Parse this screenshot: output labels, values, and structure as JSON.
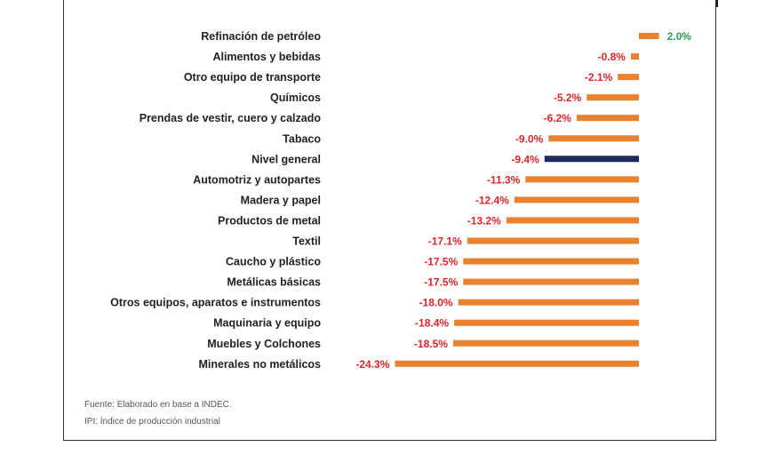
{
  "chart_data": {
    "type": "bar",
    "orientation": "horizontal",
    "categories": [
      "Refinación de petróleo",
      "Alimentos y bebidas",
      "Otro equipo de transporte",
      "Químicos",
      "Prendas de vestir, cuero y calzado",
      "Tabaco",
      "Nivel general",
      "Automotriz y autopartes",
      "Madera y papel",
      "Productos de metal",
      "Textil",
      "Caucho y plástico",
      "Metálicas básicas",
      "Otros equipos, aparatos e instrumentos",
      "Maquinaria y equipo",
      "Muebles y Colchones",
      "Minerales no metálicos"
    ],
    "values": [
      2.0,
      -0.8,
      -2.1,
      -5.2,
      -6.2,
      -9.0,
      -9.4,
      -11.3,
      -12.4,
      -13.2,
      -17.1,
      -17.5,
      -17.5,
      -18.0,
      -18.4,
      -18.5,
      -24.3
    ],
    "value_labels": [
      "2.0%",
      "-0.8%",
      "-2.1%",
      "-5.2%",
      "-6.2%",
      "-9.0%",
      "-9.4%",
      "-11.3%",
      "-12.4%",
      "-13.2%",
      "-17.1%",
      "-17.5%",
      "-17.5%",
      "-18.0%",
      "-18.4%",
      "-18.5%",
      "-24.3%"
    ],
    "highlight_category": "Nivel general",
    "xlim": [
      -24.3,
      2.0
    ],
    "grid": false,
    "colors": {
      "bar": "#E8822E",
      "highlight_bar": "#1F2A5C",
      "positive_label": "#2E9E4F",
      "negative_label": "#E0242A"
    }
  },
  "footnotes": {
    "source": "Fuente: Elaborado en base a INDEC.",
    "ipi": "IPI: Índice de producción industrial"
  }
}
